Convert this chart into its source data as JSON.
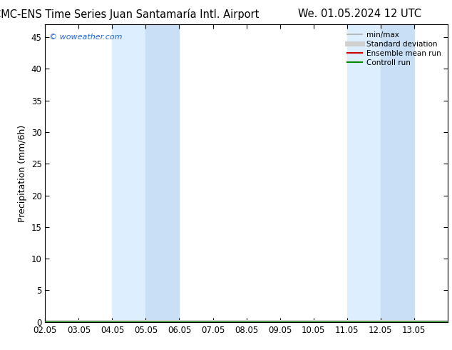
{
  "title_left": "CMC-ENS Time Series Juan Santamaría Intl. Airport",
  "title_right": "We. 01.05.2024 12 UTC",
  "ylabel": "Precipitation (mm/6h)",
  "ylim": [
    0,
    47
  ],
  "yticks": [
    0,
    5,
    10,
    15,
    20,
    25,
    30,
    35,
    40,
    45
  ],
  "xlim_start": 0,
  "xlim_end": 12,
  "xtick_labels": [
    "02.05",
    "03.05",
    "04.05",
    "05.05",
    "06.05",
    "07.05",
    "08.05",
    "09.05",
    "10.05",
    "11.05",
    "12.05",
    "13.05"
  ],
  "shaded_bands": [
    {
      "xstart": 2.0,
      "xend": 3.0,
      "color": "#ddeeff"
    },
    {
      "xstart": 3.0,
      "xend": 4.0,
      "color": "#c8dff5"
    },
    {
      "xstart": 9.0,
      "xend": 10.0,
      "color": "#ddeeff"
    },
    {
      "xstart": 10.0,
      "xend": 11.0,
      "color": "#c8dff5"
    }
  ],
  "watermark": "© woweather.com",
  "bg_color": "#ffffff",
  "plot_bg_color": "#ffffff",
  "legend_items": [
    {
      "label": "min/max",
      "color": "#b0b0b0",
      "lw": 1.2,
      "style": "-"
    },
    {
      "label": "Standard deviation",
      "color": "#d0d0d0",
      "lw": 5,
      "style": "-"
    },
    {
      "label": "Ensemble mean run",
      "color": "#cc0000",
      "lw": 1.5,
      "style": "-"
    },
    {
      "label": "Controll run",
      "color": "#008800",
      "lw": 1.5,
      "style": "-"
    }
  ],
  "title_fontsize": 10.5,
  "axis_label_fontsize": 9,
  "tick_fontsize": 8.5,
  "legend_fontsize": 7.5
}
